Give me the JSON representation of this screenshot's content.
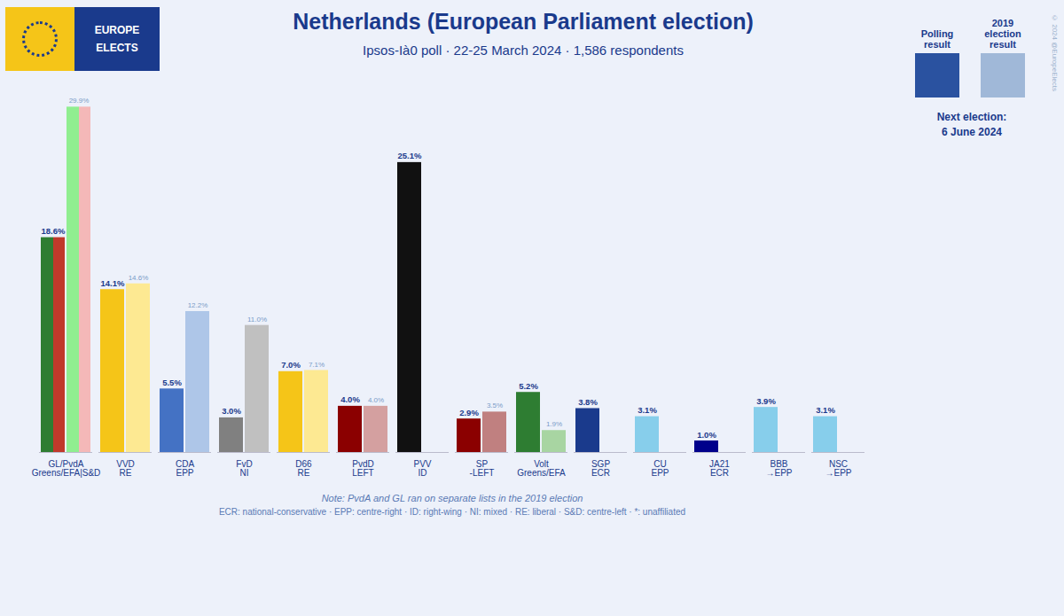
{
  "chart_data": {
    "type": "bar",
    "title": "Netherlands (European Parliament election)",
    "subtitle": "Ipsos-Ià0 poll · 22-25 March 2024 · 1,586 respondents",
    "categories": [
      "GL/PvdA",
      "VVD",
      "CDA",
      "FvD",
      "D66",
      "PvdD",
      "PVV",
      "SP",
      "Volt",
      "SGP",
      "CU",
      "JA21",
      "BBB",
      "NSC"
    ],
    "category_sublabels": [
      "Greens/EFA|S&D",
      "RE",
      "EPP",
      "NI",
      "RE",
      "LEFT",
      "ID",
      "-LEFT",
      "Greens/EFA",
      "ECR",
      "EPP",
      "ECR",
      "→EPP",
      "→EPP"
    ],
    "series": [
      {
        "name": "Polling result",
        "color": "#2a52a0",
        "colors": [
          [
            "#2e7d32",
            "#c0392b"
          ],
          "#f5c518",
          "#4472c4",
          "#808080",
          "#f5c518",
          "#8b0000",
          "#111111",
          "#8b0000",
          "#2e7d32",
          "#1a3a8c",
          "#87ceeb",
          "#00008b",
          "#87ceeb",
          "#87ceeb"
        ],
        "values": [
          18.6,
          14.1,
          5.5,
          3.0,
          7.0,
          4.0,
          25.1,
          2.9,
          5.2,
          3.8,
          3.1,
          1.0,
          3.9,
          3.1
        ],
        "value_labels": [
          "18.6%",
          "14.1%",
          "5.5%",
          "3.0%",
          "7.0%",
          "4.0%",
          "25.1%",
          "2.9%",
          "5.2%",
          "3.8%",
          "3.1%",
          "1.0%",
          "3.9%",
          "3.1%"
        ]
      },
      {
        "name": "2019 election result",
        "color": "#a0b8d8",
        "colors": [
          [
            "#90ee90",
            "#f4b8b8"
          ],
          "#fde992",
          "#aec6e8",
          "#c0c0c0",
          "#fde992",
          "#d4a0a0",
          null,
          "#c08080",
          "#a8d5a2",
          null,
          null,
          null,
          null,
          null
        ],
        "values": [
          29.9,
          14.6,
          12.2,
          11.0,
          7.1,
          4.0,
          null,
          3.5,
          1.9,
          null,
          null,
          null,
          null,
          null
        ],
        "value_labels": [
          "29.9%",
          "14.6%",
          "12.2%",
          "11.0%",
          "7.1%",
          "4.0%",
          null,
          "3.5%",
          "1.9%",
          null,
          null,
          null,
          null,
          null
        ]
      }
    ],
    "ylim": [
      0,
      31
    ],
    "yticks": [],
    "tick_labels": false,
    "grid": false,
    "legend": "upper right",
    "data_labels": true,
    "annotations": [
      "Note: PvdA and GL ran on separate lists in the 2019 election",
      "ECR: national-conservative · EPP: centre-right · ID: right-wing · NI: mixed · RE: liberal · S&D: centre-left · *: unaffiliated",
      "EUROPE",
      "ELECTS",
      "Next election:",
      "6 June 2024",
      "© 2024 @EuropeElects"
    ]
  }
}
